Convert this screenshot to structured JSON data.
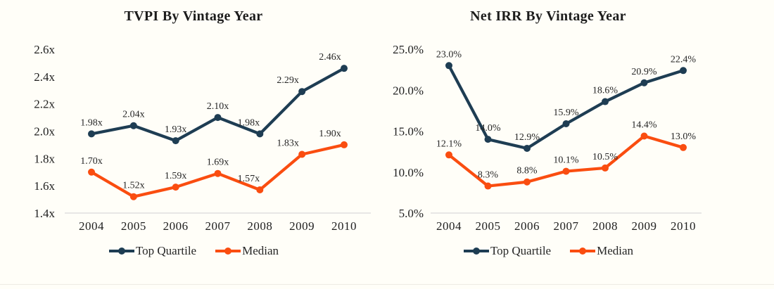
{
  "colors": {
    "top_quartile": "#1E3D53",
    "median": "#FA4D10",
    "axis_line": "#D9D9D9",
    "tick_text": "#1F1F1F",
    "data_label_text": "#262626",
    "title_text": "#1C1C1C",
    "background": "#FFFEF8"
  },
  "chart_data": [
    {
      "type": "line",
      "title": "TVPI By Vintage Year",
      "categories": [
        "2004",
        "2005",
        "2006",
        "2007",
        "2008",
        "2009",
        "2010"
      ],
      "series": [
        {
          "name": "Top Quartile",
          "color": "#1E3D53",
          "values": [
            1.98,
            2.04,
            1.93,
            2.1,
            1.98,
            2.29,
            2.46
          ],
          "point_labels": [
            "1.98x",
            "2.04x",
            "1.93x",
            "2.10x",
            "1.98x",
            "2.29x",
            "2.46x"
          ]
        },
        {
          "name": "Median",
          "color": "#FA4D10",
          "values": [
            1.7,
            1.52,
            1.59,
            1.69,
            1.57,
            1.83,
            1.9
          ],
          "point_labels": [
            "1.70x",
            "1.52x",
            "1.59x",
            "1.69x",
            "1.57x",
            "1.83x",
            "1.90x"
          ]
        }
      ],
      "xlabel": "",
      "ylabel": "",
      "ylim": [
        1.4,
        2.6
      ],
      "yticks": [
        {
          "value": 1.4,
          "label": "1.4x"
        },
        {
          "value": 1.6,
          "label": "1.6x"
        },
        {
          "value": 1.8,
          "label": "1.8x"
        },
        {
          "value": 2.0,
          "label": "2.0x"
        },
        {
          "value": 2.2,
          "label": "2.2x"
        },
        {
          "value": 2.4,
          "label": "2.4x"
        },
        {
          "value": 2.6,
          "label": "2.6x"
        }
      ],
      "grid": "baseline only",
      "legend_position": "bottom"
    },
    {
      "type": "line",
      "title": "Net IRR By Vintage Year",
      "categories": [
        "2004",
        "2005",
        "2006",
        "2007",
        "2008",
        "2009",
        "2010"
      ],
      "series": [
        {
          "name": "Top Quartile",
          "color": "#1E3D53",
          "values": [
            23.0,
            14.0,
            12.9,
            15.9,
            18.6,
            20.9,
            22.4
          ],
          "point_labels": [
            "23.0%",
            "14.0%",
            "12.9%",
            "15.9%",
            "18.6%",
            "20.9%",
            "22.4%"
          ]
        },
        {
          "name": "Median",
          "color": "#FA4D10",
          "values": [
            12.1,
            8.3,
            8.8,
            10.1,
            10.5,
            14.4,
            13.0
          ],
          "point_labels": [
            "12.1%",
            "8.3%",
            "8.8%",
            "10.1%",
            "10.5%",
            "14.4%",
            "13.0%"
          ]
        }
      ],
      "xlabel": "",
      "ylabel": "",
      "ylim": [
        5.0,
        25.0
      ],
      "yticks": [
        {
          "value": 5.0,
          "label": "5.0%"
        },
        {
          "value": 10.0,
          "label": "10.0%"
        },
        {
          "value": 15.0,
          "label": "15.0%"
        },
        {
          "value": 20.0,
          "label": "20.0%"
        },
        {
          "value": 25.0,
          "label": "25.0%"
        }
      ],
      "grid": "baseline only",
      "legend_position": "bottom"
    }
  ]
}
